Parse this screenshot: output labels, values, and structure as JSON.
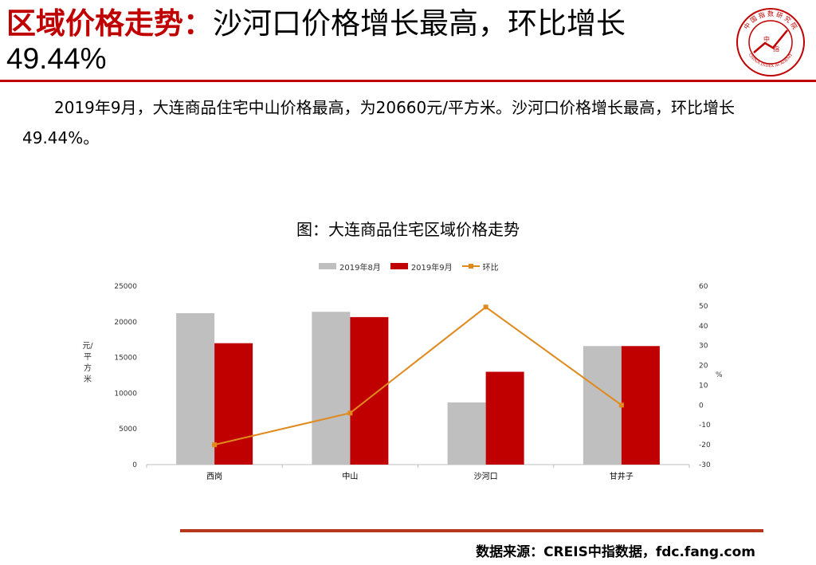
{
  "header": {
    "title_red": "区域价格走势：",
    "title_black": "沙河口价格增长最高，环比增长",
    "title_line2": "49.44%"
  },
  "logo": {
    "icon": "china-index-academy-seal-icon",
    "center_chars": [
      "中",
      "指"
    ],
    "arc_text": "中 国 指 数 研 究 院",
    "english_text": "CHINA INDEX ACADEMY",
    "color": "#c00000"
  },
  "summary": "2019年9月，大连商品住宅中山价格最高，为20660元/平方米。沙河口价格增长最高，环比增长49.44%。",
  "chart_data": {
    "type": "bar",
    "title": "图：大连商品住宅区域价格走势",
    "categories": [
      "西岗",
      "中山",
      "沙河口",
      "甘井子"
    ],
    "series": [
      {
        "name": "2019年8月",
        "type": "bar",
        "axis": "left",
        "color": "#bfbfbf",
        "values": [
          21200,
          21400,
          8700,
          16600
        ]
      },
      {
        "name": "2019年9月",
        "type": "bar",
        "axis": "left",
        "color": "#c00000",
        "values": [
          17000,
          20660,
          13000,
          16600
        ]
      },
      {
        "name": "环比",
        "type": "line",
        "axis": "right",
        "color": "#e08a1e",
        "values": [
          -20,
          -4,
          49.44,
          0
        ]
      }
    ],
    "ylabel_left": "元/平方米",
    "ylabel_right": "%",
    "ylim_left": [
      0,
      25000
    ],
    "yticks_left": [
      "0",
      "5000",
      "10000",
      "15000",
      "20000",
      "25000"
    ],
    "ylim_right": [
      -30,
      60
    ],
    "yticks_right": [
      "-30",
      "-20",
      "-10",
      "0",
      "10",
      "20",
      "30",
      "40",
      "50",
      "60"
    ],
    "legend_position": "top",
    "grid": false
  },
  "footer": {
    "source": "数据来源：CREIS中指数据，fdc.fang.com"
  }
}
